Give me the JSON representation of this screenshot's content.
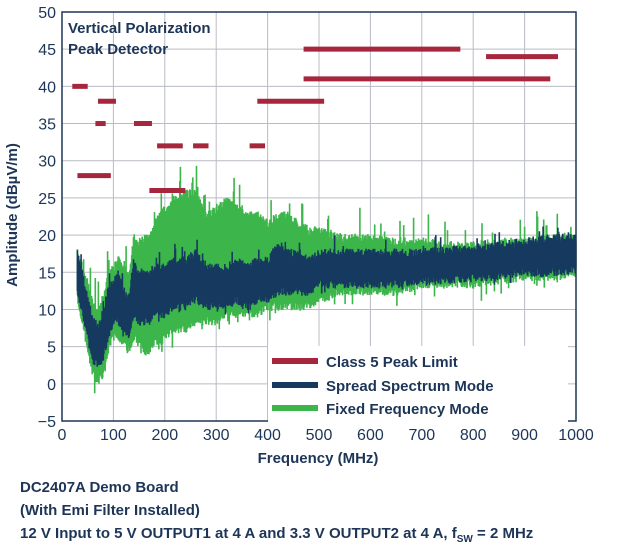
{
  "chart_data": {
    "type": "line",
    "title": "",
    "annotation_lines": [
      "Vertical Polarization",
      "Peak Detector"
    ],
    "xlabel": "Frequency (MHz)",
    "ylabel": "Amplitude (dBµV/m)",
    "xlim": [
      0,
      1000
    ],
    "ylim": [
      -5,
      50
    ],
    "x_ticks": [
      0,
      100,
      200,
      300,
      400,
      500,
      600,
      700,
      800,
      900,
      1000
    ],
    "y_ticks": [
      -5,
      0,
      5,
      10,
      15,
      20,
      25,
      30,
      35,
      40,
      45,
      50
    ],
    "grid": true,
    "legend": {
      "placement": "bottom-right",
      "entries": [
        "Class 5 Peak Limit",
        "Spread Spectrum Mode",
        "Fixed Frequency Mode"
      ]
    },
    "colors": {
      "limit": "#a6263e",
      "spread": "#163a5f",
      "fixed": "#3cb54a",
      "text": "#1d3557"
    },
    "series": [
      {
        "name": "Class 5 Peak Limit",
        "segments": [
          {
            "x": [
              20,
              50
            ],
            "y": 40
          },
          {
            "x": [
              70,
              105
            ],
            "y": 38
          },
          {
            "x": [
              65,
              85
            ],
            "y": 35
          },
          {
            "x": [
              140,
              175
            ],
            "y": 35
          },
          {
            "x": [
              185,
              235
            ],
            "y": 32
          },
          {
            "x": [
              255,
              285
            ],
            "y": 32
          },
          {
            "x": [
              365,
              395
            ],
            "y": 32
          },
          {
            "x": [
              30,
              95
            ],
            "y": 28
          },
          {
            "x": [
              170,
              240
            ],
            "y": 26
          },
          {
            "x": [
              380,
              510
            ],
            "y": 38
          },
          {
            "x": [
              470,
              775
            ],
            "y": 45
          },
          {
            "x": [
              470,
              950
            ],
            "y": 41
          },
          {
            "x": [
              825,
              965
            ],
            "y": 44
          }
        ]
      },
      {
        "name": "Spread Spectrum Mode",
        "x": [
          30,
          40,
          50,
          60,
          70,
          80,
          90,
          100,
          110,
          120,
          130,
          140,
          150,
          160,
          170,
          180,
          190,
          200,
          220,
          240,
          260,
          280,
          300,
          320,
          340,
          360,
          380,
          400,
          420,
          440,
          460,
          480,
          500,
          550,
          600,
          650,
          700,
          750,
          800,
          850,
          900,
          950,
          1000
        ],
        "low": [
          13,
          10,
          7,
          4,
          3,
          4,
          7,
          9,
          9,
          8,
          7,
          10,
          9,
          9,
          9,
          10,
          10,
          10,
          11,
          11,
          12,
          11,
          11,
          11,
          12,
          11,
          12,
          12,
          13,
          13,
          13,
          13,
          14,
          14,
          14,
          14,
          14.5,
          14.5,
          15,
          15,
          15.5,
          15.5,
          16
        ],
        "high": [
          17,
          14,
          11,
          8,
          7,
          9,
          12,
          13,
          14,
          12,
          11,
          16,
          14,
          14,
          14,
          15,
          15,
          15,
          16,
          16,
          17,
          15,
          15,
          15,
          16,
          15,
          16,
          16,
          18,
          17,
          17,
          16,
          17,
          17,
          17,
          17,
          17,
          17.5,
          17.5,
          18,
          18.5,
          19,
          19
        ]
      },
      {
        "name": "Fixed Frequency Mode",
        "x": [
          30,
          40,
          50,
          60,
          70,
          80,
          90,
          100,
          110,
          120,
          130,
          140,
          150,
          160,
          170,
          180,
          190,
          200,
          220,
          240,
          260,
          280,
          300,
          320,
          340,
          360,
          380,
          400,
          420,
          440,
          460,
          480,
          500,
          550,
          600,
          650,
          700,
          750,
          800,
          850,
          900,
          950,
          1000
        ],
        "low": [
          12,
          9,
          5,
          2,
          1,
          2,
          5,
          7,
          7,
          6,
          5,
          7,
          6,
          5,
          5,
          6,
          6,
          7,
          8,
          8,
          9,
          9,
          9,
          10,
          10,
          10,
          10,
          11,
          11,
          11,
          11,
          11,
          12,
          13,
          13,
          13,
          14,
          14,
          14,
          14.5,
          15,
          15,
          15.5
        ],
        "high": [
          17,
          15,
          13,
          10,
          9,
          11,
          14,
          15,
          16,
          15,
          14,
          19,
          18,
          19,
          19,
          21,
          22,
          23,
          24,
          25,
          25,
          22,
          23,
          24,
          23,
          22,
          22,
          21,
          22,
          22,
          21,
          20,
          20,
          19,
          19,
          18.5,
          18.5,
          18,
          18,
          18.5,
          18.5,
          19,
          19
        ]
      }
    ]
  },
  "caption": {
    "line1": "DC2407A Demo Board",
    "line2": "(With Emi Filter Installed)",
    "line3_prefix": "12 V Input to 5 V OUTPUT1 at 4 A and 3.3 V OUTPUT2 at 4 A, f",
    "line3_sub": "SW",
    "line3_suffix": " = 2 MHz"
  }
}
